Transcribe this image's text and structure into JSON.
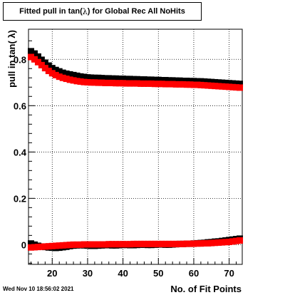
{
  "title": {
    "prefix": "Fitted pull in tan(",
    "symbol": "λ",
    "suffix": ") for Global Rec All NoHits"
  },
  "footer": {
    "date": "Wed Nov 10 18:56:02 2021"
  },
  "chart_data": {
    "type": "scatter",
    "title": "Fitted pull in tan( λ ) for Global Rec All NoHits",
    "xlabel": "No. of Fit Points",
    "ylabel": "pull in tan( λ)",
    "xlim": [
      13.3,
      73.7
    ],
    "ylim": [
      -0.085,
      0.93
    ],
    "xticks": [
      20,
      30,
      40,
      50,
      60,
      70
    ],
    "xtick_labels": [
      "20",
      "30",
      "40",
      "50",
      "60",
      "70"
    ],
    "yticks": [
      0,
      0.2,
      0.4,
      0.6,
      0.8
    ],
    "ytick_labels": [
      "0",
      "0.2",
      "0.4",
      "0.6",
      "0.8"
    ],
    "grid": true,
    "legend": "none",
    "series": [
      {
        "color": "#000000",
        "x": [
          14,
          15,
          16,
          17,
          18,
          19,
          20,
          21,
          22,
          23,
          24,
          25,
          26,
          27,
          28,
          29,
          30,
          31,
          32,
          33,
          34,
          35,
          36,
          37,
          38,
          39,
          40,
          41,
          42,
          43,
          44,
          45,
          46,
          47,
          48,
          49,
          50,
          51,
          52,
          53,
          54,
          55,
          56,
          57,
          58,
          59,
          60,
          61,
          62,
          63,
          64,
          65,
          66,
          67,
          68,
          69,
          70,
          71,
          72,
          73
        ],
        "y": [
          0.835,
          0.825,
          0.812,
          0.798,
          0.785,
          0.773,
          0.762,
          0.754,
          0.748,
          0.742,
          0.738,
          0.735,
          0.732,
          0.729,
          0.726,
          0.724,
          0.722,
          0.721,
          0.72,
          0.72,
          0.719,
          0.718,
          0.718,
          0.717,
          0.717,
          0.716,
          0.716,
          0.715,
          0.715,
          0.714,
          0.714,
          0.713,
          0.713,
          0.712,
          0.712,
          0.711,
          0.711,
          0.71,
          0.71,
          0.709,
          0.709,
          0.708,
          0.708,
          0.707,
          0.707,
          0.706,
          0.706,
          0.705,
          0.705,
          0.704,
          0.703,
          0.702,
          0.701,
          0.7,
          0.699,
          0.698,
          0.697,
          0.696,
          0.695,
          0.694
        ]
      },
      {
        "color": "#ff0000",
        "x": [
          14,
          15,
          16,
          17,
          18,
          19,
          20,
          21,
          22,
          23,
          24,
          25,
          26,
          27,
          28,
          29,
          30,
          31,
          32,
          33,
          34,
          35,
          36,
          37,
          38,
          39,
          40,
          41,
          42,
          43,
          44,
          45,
          46,
          47,
          48,
          49,
          50,
          51,
          52,
          53,
          54,
          55,
          56,
          57,
          58,
          59,
          60,
          61,
          62,
          63,
          64,
          65,
          66,
          67,
          68,
          69,
          70,
          71,
          72,
          73
        ],
        "y": [
          0.81,
          0.8,
          0.788,
          0.775,
          0.762,
          0.75,
          0.74,
          0.732,
          0.725,
          0.72,
          0.716,
          0.712,
          0.709,
          0.706,
          0.704,
          0.702,
          0.701,
          0.7,
          0.7,
          0.699,
          0.699,
          0.698,
          0.698,
          0.698,
          0.697,
          0.697,
          0.697,
          0.696,
          0.696,
          0.696,
          0.696,
          0.695,
          0.695,
          0.695,
          0.695,
          0.694,
          0.694,
          0.694,
          0.693,
          0.693,
          0.693,
          0.692,
          0.692,
          0.692,
          0.691,
          0.691,
          0.69,
          0.69,
          0.689,
          0.688,
          0.687,
          0.686,
          0.685,
          0.684,
          0.683,
          0.682,
          0.681,
          0.68,
          0.679,
          0.678
        ]
      },
      {
        "color": "#000000",
        "x": [
          14,
          15,
          16,
          17,
          18,
          19,
          20,
          21,
          22,
          23,
          24,
          25,
          26,
          27,
          28,
          29,
          30,
          31,
          32,
          33,
          34,
          35,
          36,
          37,
          38,
          39,
          40,
          41,
          42,
          43,
          44,
          45,
          46,
          47,
          48,
          49,
          50,
          51,
          52,
          53,
          54,
          55,
          56,
          57,
          58,
          59,
          60,
          61,
          62,
          63,
          64,
          65,
          66,
          67,
          68,
          69,
          70,
          71,
          72,
          73
        ],
        "y": [
          0.005,
          0.0,
          -0.005,
          -0.008,
          -0.01,
          -0.012,
          -0.013,
          -0.014,
          -0.013,
          -0.011,
          -0.009,
          -0.006,
          -0.004,
          -0.003,
          -0.002,
          -0.003,
          -0.004,
          -0.005,
          -0.005,
          -0.004,
          -0.003,
          -0.002,
          -0.002,
          -0.003,
          -0.003,
          -0.002,
          -0.001,
          -0.001,
          -0.002,
          -0.002,
          -0.001,
          0.0,
          0.0,
          -0.001,
          -0.001,
          0.0,
          0.001,
          0.001,
          0.0,
          0.0,
          0.001,
          0.002,
          0.003,
          0.003,
          0.004,
          0.004,
          0.005,
          0.006,
          0.007,
          0.008,
          0.01,
          0.011,
          0.013,
          0.014,
          0.016,
          0.018,
          0.02,
          0.022,
          0.024,
          0.026
        ]
      },
      {
        "color": "#ff0000",
        "x": [
          14,
          15,
          16,
          17,
          18,
          19,
          20,
          21,
          22,
          23,
          24,
          25,
          26,
          27,
          28,
          29,
          30,
          31,
          32,
          33,
          34,
          35,
          36,
          37,
          38,
          39,
          40,
          41,
          42,
          43,
          44,
          45,
          46,
          47,
          48,
          49,
          50,
          51,
          52,
          53,
          54,
          55,
          56,
          57,
          58,
          59,
          60,
          61,
          62,
          63,
          64,
          65,
          66,
          67,
          68,
          69,
          70,
          71,
          72,
          73
        ],
        "y": [
          -0.012,
          -0.011,
          -0.01,
          -0.009,
          -0.008,
          -0.007,
          -0.006,
          -0.005,
          -0.004,
          -0.003,
          -0.002,
          -0.001,
          0.0,
          0.0,
          0.0,
          0.001,
          0.001,
          0.001,
          0.001,
          0.001,
          0.001,
          0.001,
          0.002,
          0.002,
          0.002,
          0.002,
          0.002,
          0.002,
          0.002,
          0.003,
          0.003,
          0.003,
          0.003,
          0.003,
          0.003,
          0.003,
          0.003,
          0.003,
          0.003,
          0.003,
          0.003,
          0.003,
          0.003,
          0.003,
          0.004,
          0.004,
          0.004,
          0.005,
          0.005,
          0.006,
          0.006,
          0.007,
          0.008,
          0.009,
          0.01,
          0.011,
          0.012,
          0.014,
          0.016,
          0.018
        ]
      }
    ]
  }
}
